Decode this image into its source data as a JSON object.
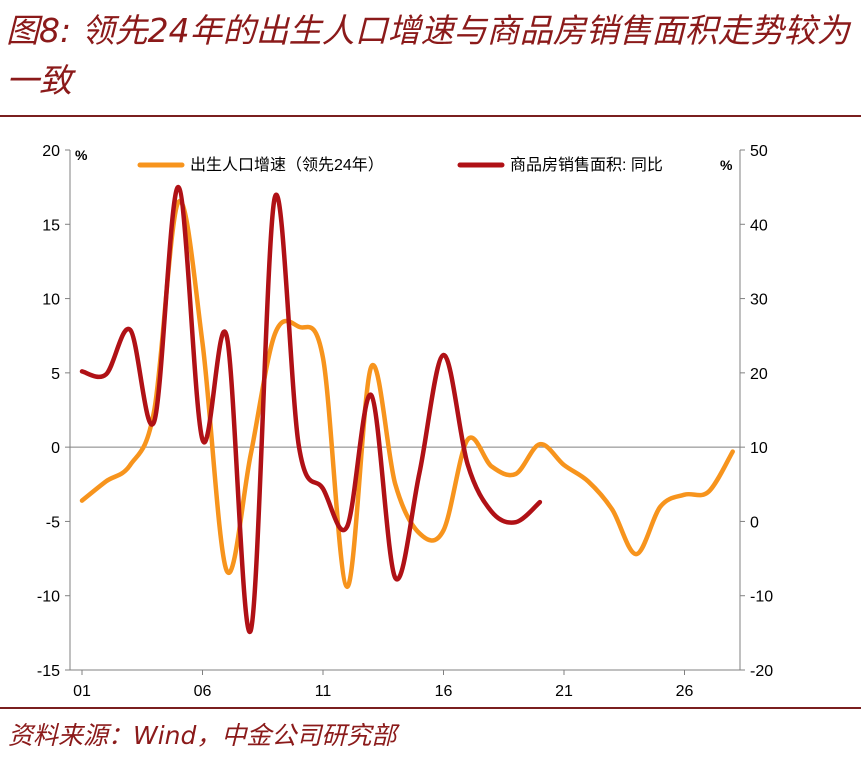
{
  "title": "图8: 领先24年的出生人口增速与商品房销售面积走势较为一致",
  "source": "资料来源：Wind，中金公司研究部",
  "colors": {
    "birth": "#f7941d",
    "sales": "#b01116",
    "brand": "#8b1a1a",
    "axis": "#808080"
  },
  "chart_data": {
    "type": "line",
    "left_axis": {
      "unit": "%",
      "min": -15,
      "max": 20,
      "ticks": [
        -15,
        -10,
        -5,
        0,
        5,
        10,
        15,
        20
      ]
    },
    "right_axis": {
      "unit": "%",
      "min": -20,
      "max": 50,
      "ticks": [
        -20,
        -10,
        0,
        10,
        20,
        30,
        40,
        50
      ]
    },
    "x_axis": {
      "min": 2001,
      "max": 2028,
      "tick_values": [
        2001,
        2006,
        2011,
        2016,
        2021,
        2026
      ],
      "tick_labels": [
        "01",
        "06",
        "11",
        "16",
        "21",
        "26"
      ]
    },
    "legend_position": "top",
    "series": [
      {
        "name": "出生人口增速（领先24年）",
        "axis": "left",
        "color": "#f7941d",
        "x": [
          2001,
          2002,
          2003,
          2004,
          2005,
          2006,
          2007,
          2008,
          2009,
          2010,
          2011,
          2012,
          2013,
          2014,
          2015,
          2016,
          2017,
          2018,
          2019,
          2020,
          2021,
          2022,
          2023,
          2024,
          2025,
          2026,
          2027,
          2028
        ],
        "y": [
          -3.6,
          -2.3,
          -1.2,
          2.5,
          16.5,
          7.0,
          -8.3,
          -0.5,
          7.6,
          8.1,
          6.0,
          -9.4,
          5.4,
          -2.5,
          -5.8,
          -5.6,
          0.5,
          -1.3,
          -1.8,
          0.2,
          -1.2,
          -2.3,
          -4.2,
          -7.2,
          -4.0,
          -3.2,
          -3.0,
          -0.3
        ]
      },
      {
        "name": "商品房销售面积: 同比",
        "axis": "right",
        "color": "#b01116",
        "x": [
          2001,
          2002,
          2003,
          2004,
          2005,
          2006,
          2007,
          2008,
          2009,
          2010,
          2011,
          2012,
          2013,
          2014,
          2015,
          2016,
          2017,
          2018,
          2019,
          2020
        ],
        "y": [
          20.2,
          19.8,
          25.8,
          13.5,
          45.0,
          11.0,
          25.0,
          -14.7,
          43.6,
          10.1,
          4.4,
          -0.7,
          17.0,
          -7.6,
          6.5,
          22.4,
          7.7,
          1.3,
          -0.1,
          2.6
        ]
      }
    ]
  }
}
